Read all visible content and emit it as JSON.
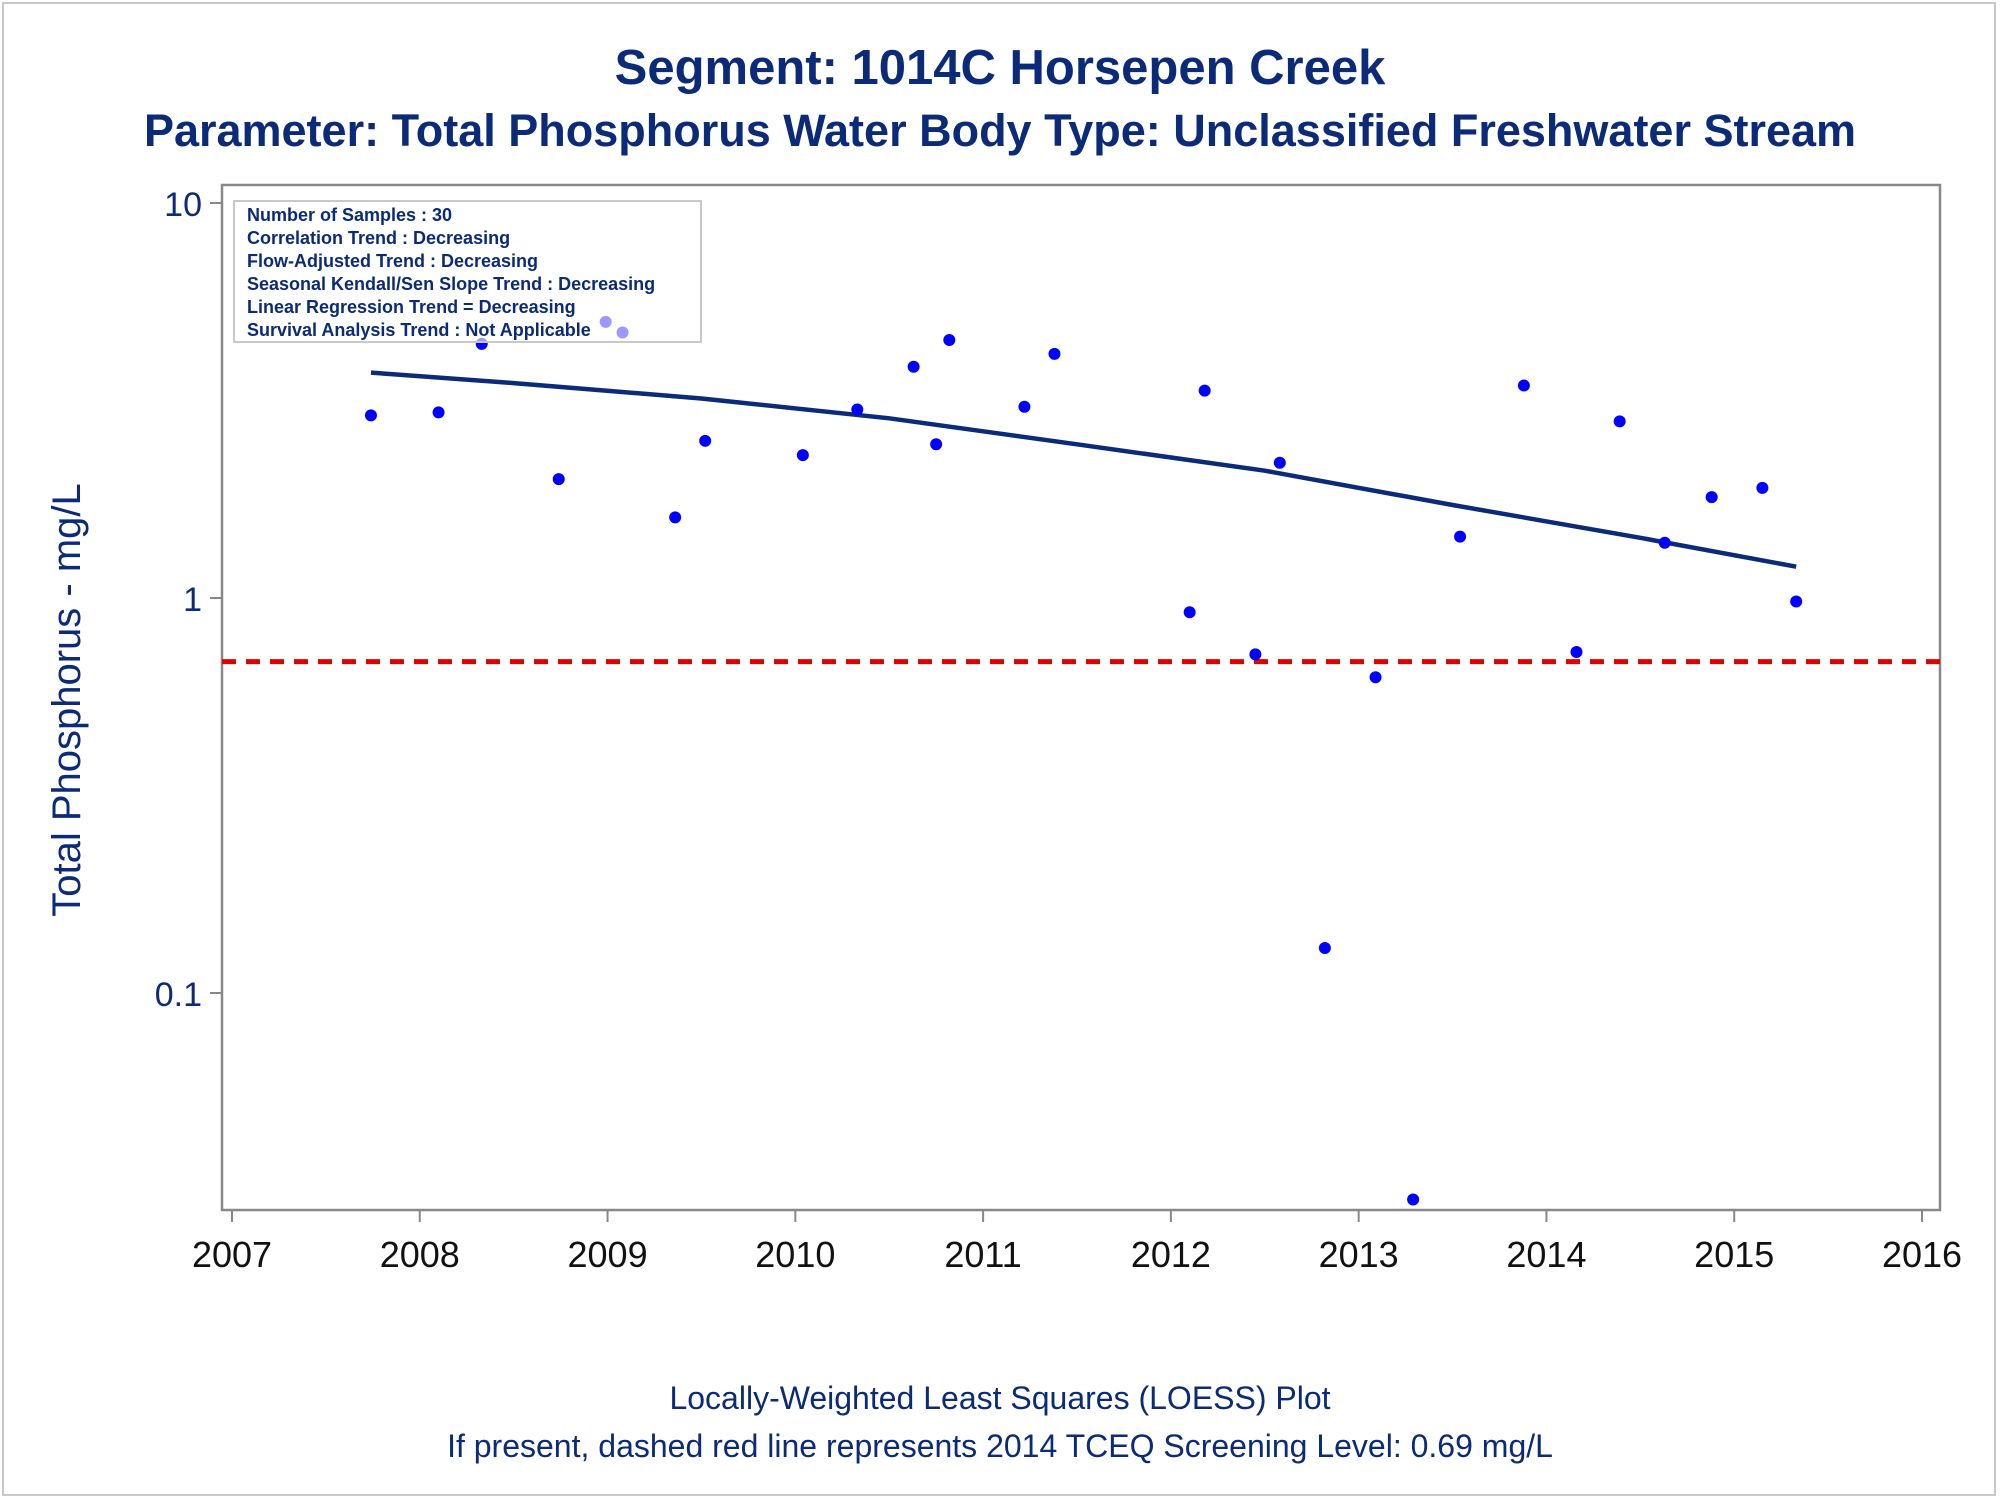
{
  "header": {
    "title": "Segment: 1014C  Horsepen Creek",
    "subtitle": "Parameter: Total Phosphorus   Water Body Type: Unclassified Freshwater Stream"
  },
  "footer": {
    "line1": "Locally-Weighted Least Squares (LOESS) Plot",
    "line2": "If present, dashed red line represents 2014 TCEQ Screening Level: 0.69 mg/L"
  },
  "info_box": {
    "lines": [
      "Number of Samples : 30",
      "Correlation Trend : Decreasing",
      "Flow-Adjusted Trend : Decreasing",
      "Seasonal Kendall/Sen Slope Trend : Decreasing",
      "Linear Regression Trend = Decreasing",
      "Survival Analysis Trend : Not Applicable"
    ]
  },
  "colors": {
    "text": "#0b2a78",
    "points": "#0000ff",
    "loess": "#0b2a78",
    "screening": "#e00000",
    "axis": "#888888"
  },
  "chart_data": {
    "type": "scatter",
    "ylabel": "Total Phosphorus - mg/L",
    "xlabel": "",
    "xlim": [
      2007,
      2016
    ],
    "ylim": [
      0.03,
      10
    ],
    "yscale": "log",
    "x_ticks": [
      "2007",
      "2008",
      "2009",
      "2010",
      "2011",
      "2012",
      "2013",
      "2014",
      "2015",
      "2016"
    ],
    "y_ticks": [
      "0.1",
      "1",
      "10"
    ],
    "grid": false,
    "series": [
      {
        "type": "scatter",
        "points": [
          {
            "x": 2007.74,
            "y": 2.9
          },
          {
            "x": 2008.1,
            "y": 2.95
          },
          {
            "x": 2008.33,
            "y": 4.4
          },
          {
            "x": 2008.74,
            "y": 2.0
          },
          {
            "x": 2008.99,
            "y": 5.0
          },
          {
            "x": 2009.08,
            "y": 4.7
          },
          {
            "x": 2009.36,
            "y": 1.6
          },
          {
            "x": 2009.52,
            "y": 2.5
          },
          {
            "x": 2010.04,
            "y": 2.3
          },
          {
            "x": 2010.33,
            "y": 3.0
          },
          {
            "x": 2010.63,
            "y": 3.85
          },
          {
            "x": 2010.75,
            "y": 2.45
          },
          {
            "x": 2010.82,
            "y": 4.5
          },
          {
            "x": 2011.22,
            "y": 3.05
          },
          {
            "x": 2011.38,
            "y": 4.15
          },
          {
            "x": 2012.1,
            "y": 0.92
          },
          {
            "x": 2012.18,
            "y": 3.35
          },
          {
            "x": 2012.45,
            "y": 0.72
          },
          {
            "x": 2012.58,
            "y": 2.2
          },
          {
            "x": 2012.82,
            "y": 0.13
          },
          {
            "x": 2013.09,
            "y": 0.63
          },
          {
            "x": 2013.29,
            "y": 0.03
          },
          {
            "x": 2013.54,
            "y": 1.43
          },
          {
            "x": 2013.88,
            "y": 3.45
          },
          {
            "x": 2014.16,
            "y": 0.73
          },
          {
            "x": 2014.39,
            "y": 2.8
          },
          {
            "x": 2014.63,
            "y": 1.38
          },
          {
            "x": 2014.88,
            "y": 1.8
          },
          {
            "x": 2015.15,
            "y": 1.9
          },
          {
            "x": 2015.33,
            "y": 0.98
          }
        ]
      },
      {
        "type": "line",
        "points": [
          {
            "x": 2007.74,
            "y": 3.72
          },
          {
            "x": 2008.5,
            "y": 3.5
          },
          {
            "x": 2009.5,
            "y": 3.2
          },
          {
            "x": 2010.5,
            "y": 2.85
          },
          {
            "x": 2011.5,
            "y": 2.45
          },
          {
            "x": 2012.5,
            "y": 2.1
          },
          {
            "x": 2013.5,
            "y": 1.72
          },
          {
            "x": 2014.5,
            "y": 1.42
          },
          {
            "x": 2015.33,
            "y": 1.2
          }
        ]
      }
    ],
    "screening_level": 0.69
  }
}
